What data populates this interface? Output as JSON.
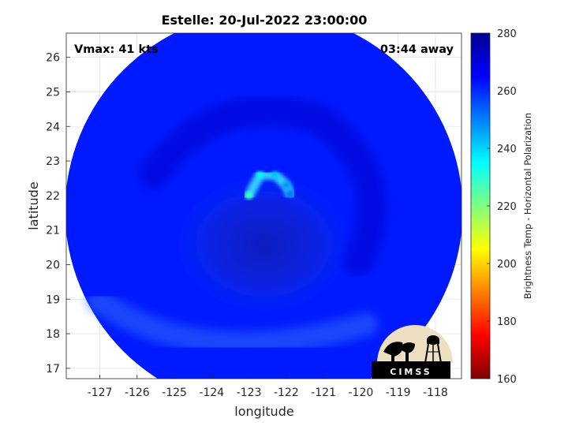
{
  "chart_data": {
    "type": "heatmap",
    "title": "Estelle: 20-Jul-2022 23:00:00",
    "xlabel": "longitude",
    "ylabel": "latitude",
    "xlim": [
      -127.9,
      -117.3
    ],
    "ylim": [
      16.7,
      26.7
    ],
    "xticks": [
      -127,
      -126,
      -125,
      -124,
      -123,
      -122,
      -121,
      -120,
      -119,
      -118
    ],
    "yticks": [
      17,
      18,
      19,
      20,
      21,
      22,
      23,
      24,
      25,
      26
    ],
    "grid": true,
    "annotations": {
      "vmax": "Vmax: 41 kts",
      "distance": "03:44 away"
    },
    "colorbar": {
      "label": "Brightness Temp - Horizontal Polarization",
      "min": 160,
      "max": 280,
      "ticks": [
        160,
        180,
        200,
        220,
        240,
        260,
        280
      ],
      "colormap": [
        "#7f0000",
        "#ff0000",
        "#ff8000",
        "#ffff00",
        "#80ff80",
        "#00ffff",
        "#0080ff",
        "#0000ff",
        "#00008f"
      ]
    },
    "swath": {
      "center_lon": -122.6,
      "center_lat": 21.7,
      "background_temp": 262,
      "eye_lon": -122.6,
      "eye_lat": 20.6,
      "eye_temp": 272,
      "rainband_lon": [
        -123.0,
        -122.7,
        -122.3,
        -122.0,
        -121.9
      ],
      "rainband_lat": [
        22.0,
        22.6,
        22.6,
        22.3,
        22.05
      ],
      "rainband_temp": [
        228,
        236,
        242,
        248,
        252
      ]
    },
    "logo": {
      "text": "CIMSS"
    }
  }
}
